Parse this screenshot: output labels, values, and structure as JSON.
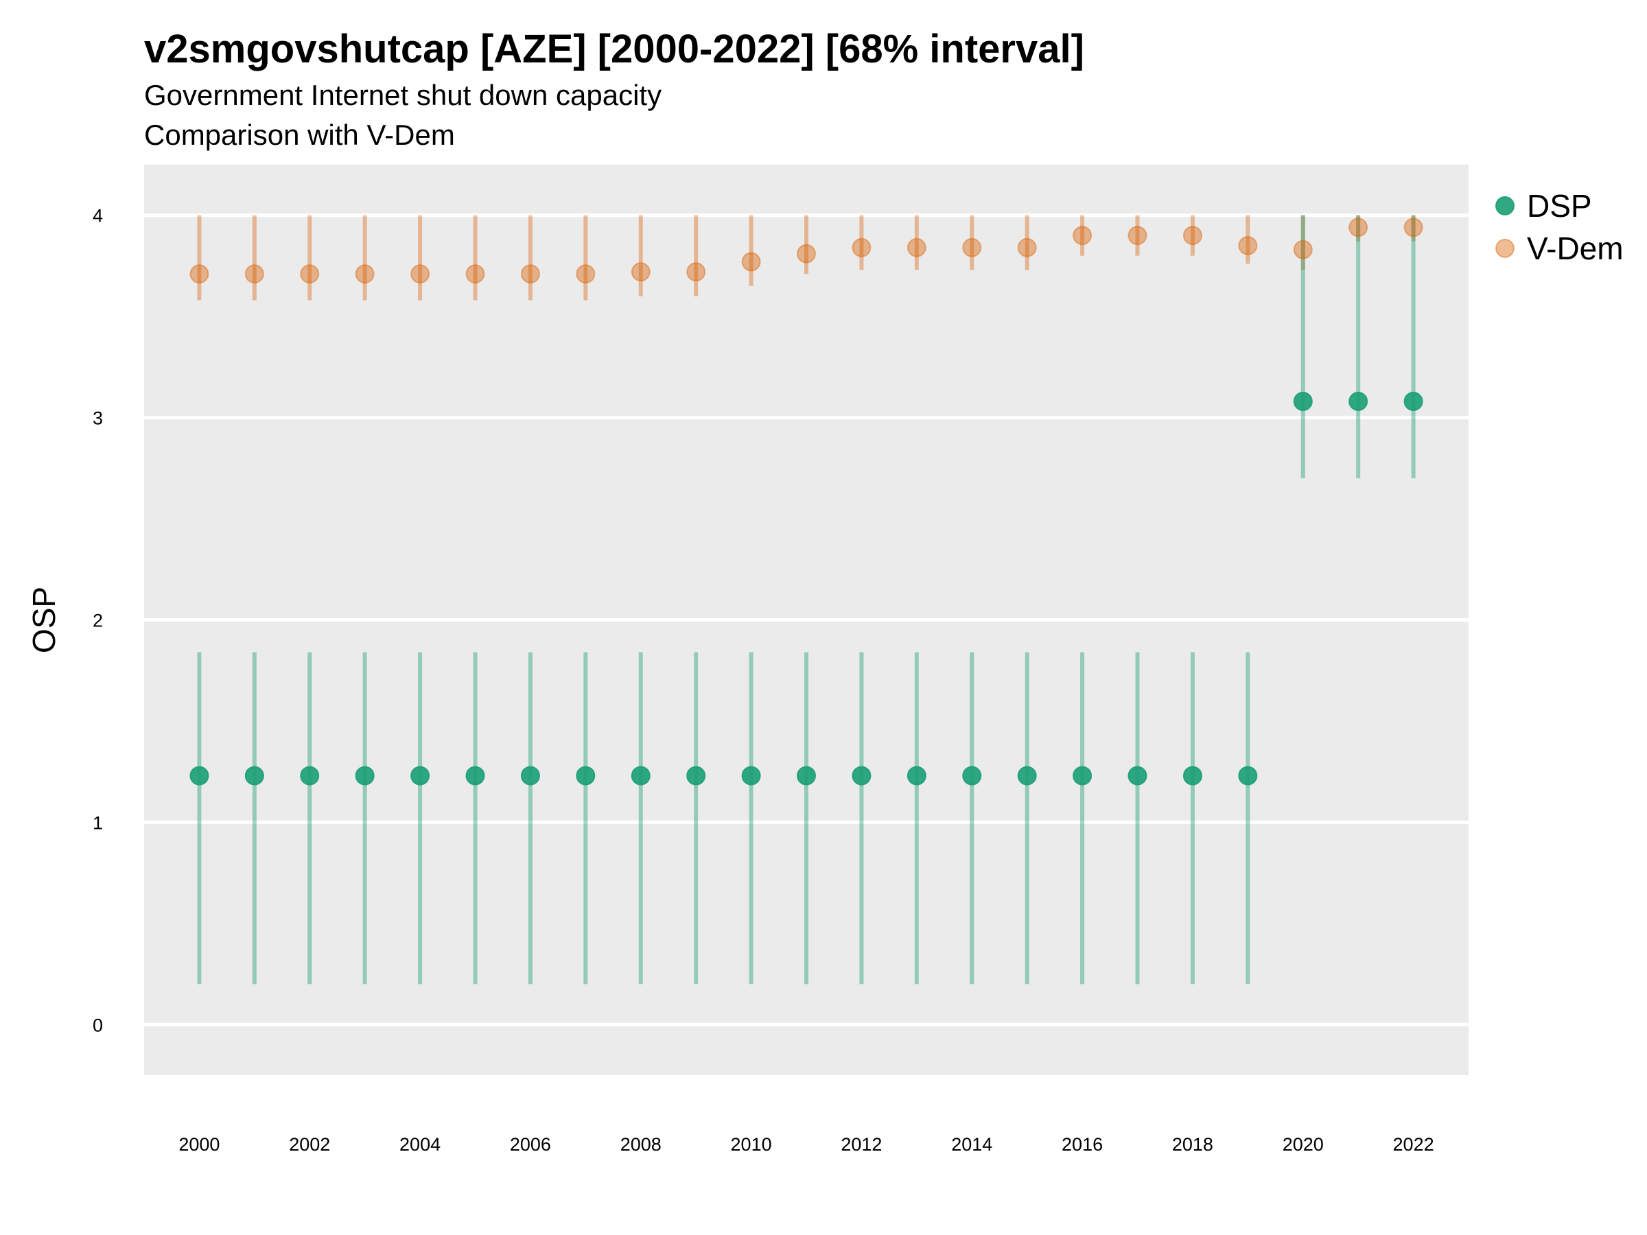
{
  "title": "v2smgovshutcap [AZE] [2000-2022] [68% interval]",
  "subtitle_line1": "Government Internet shut down capacity",
  "subtitle_line2": "Comparison with V-Dem",
  "chart_data": {
    "type": "scatter",
    "title": "v2smgovshutcap [AZE] [2000-2022] [68% interval]",
    "subtitle": [
      "Government Internet shut down capacity",
      "Comparison with V-Dem"
    ],
    "xlabel": "",
    "ylabel": "OSP",
    "x_ticks": [
      2000,
      2002,
      2004,
      2006,
      2008,
      2010,
      2012,
      2014,
      2016,
      2018,
      2020,
      2022
    ],
    "y_ticks": [
      0,
      1,
      2,
      3,
      4
    ],
    "xlim": [
      1999,
      2023
    ],
    "ylim": [
      -0.25,
      4.25
    ],
    "grid": true,
    "legend_position": "right",
    "series": [
      {
        "name": "DSP",
        "color": "#1b9e77",
        "x": [
          2000,
          2001,
          2002,
          2003,
          2004,
          2005,
          2006,
          2007,
          2008,
          2009,
          2010,
          2011,
          2012,
          2013,
          2014,
          2015,
          2016,
          2017,
          2018,
          2019,
          2020,
          2021,
          2022
        ],
        "y": [
          1.23,
          1.23,
          1.23,
          1.23,
          1.23,
          1.23,
          1.23,
          1.23,
          1.23,
          1.23,
          1.23,
          1.23,
          1.23,
          1.23,
          1.23,
          1.23,
          1.23,
          1.23,
          1.23,
          1.23,
          3.08,
          3.08,
          3.08
        ],
        "lower": [
          0.2,
          0.2,
          0.2,
          0.2,
          0.2,
          0.2,
          0.2,
          0.2,
          0.2,
          0.2,
          0.2,
          0.2,
          0.2,
          0.2,
          0.2,
          0.2,
          0.2,
          0.2,
          0.2,
          0.2,
          2.7,
          2.7,
          2.7
        ],
        "upper": [
          1.84,
          1.84,
          1.84,
          1.84,
          1.84,
          1.84,
          1.84,
          1.84,
          1.84,
          1.84,
          1.84,
          1.84,
          1.84,
          1.84,
          1.84,
          1.84,
          1.84,
          1.84,
          1.84,
          1.84,
          4.0,
          4.0,
          4.0
        ]
      },
      {
        "name": "V-Dem",
        "color": "#d95f02",
        "x": [
          2000,
          2001,
          2002,
          2003,
          2004,
          2005,
          2006,
          2007,
          2008,
          2009,
          2010,
          2011,
          2012,
          2013,
          2014,
          2015,
          2016,
          2017,
          2018,
          2019,
          2020,
          2021,
          2022
        ],
        "y": [
          3.71,
          3.71,
          3.71,
          3.71,
          3.71,
          3.71,
          3.71,
          3.71,
          3.72,
          3.72,
          3.77,
          3.81,
          3.84,
          3.84,
          3.84,
          3.84,
          3.9,
          3.9,
          3.9,
          3.85,
          3.83,
          3.94,
          3.94
        ],
        "lower": [
          3.58,
          3.58,
          3.58,
          3.58,
          3.58,
          3.58,
          3.58,
          3.58,
          3.6,
          3.6,
          3.65,
          3.71,
          3.73,
          3.73,
          3.73,
          3.73,
          3.8,
          3.8,
          3.8,
          3.76,
          3.73,
          3.87,
          3.87
        ],
        "upper": [
          4.0,
          4.0,
          4.0,
          4.0,
          4.0,
          4.0,
          4.0,
          4.0,
          4.0,
          4.0,
          4.0,
          4.0,
          4.0,
          4.0,
          4.0,
          4.0,
          4.0,
          4.0,
          4.0,
          4.0,
          4.0,
          4.0,
          4.0
        ]
      }
    ]
  }
}
